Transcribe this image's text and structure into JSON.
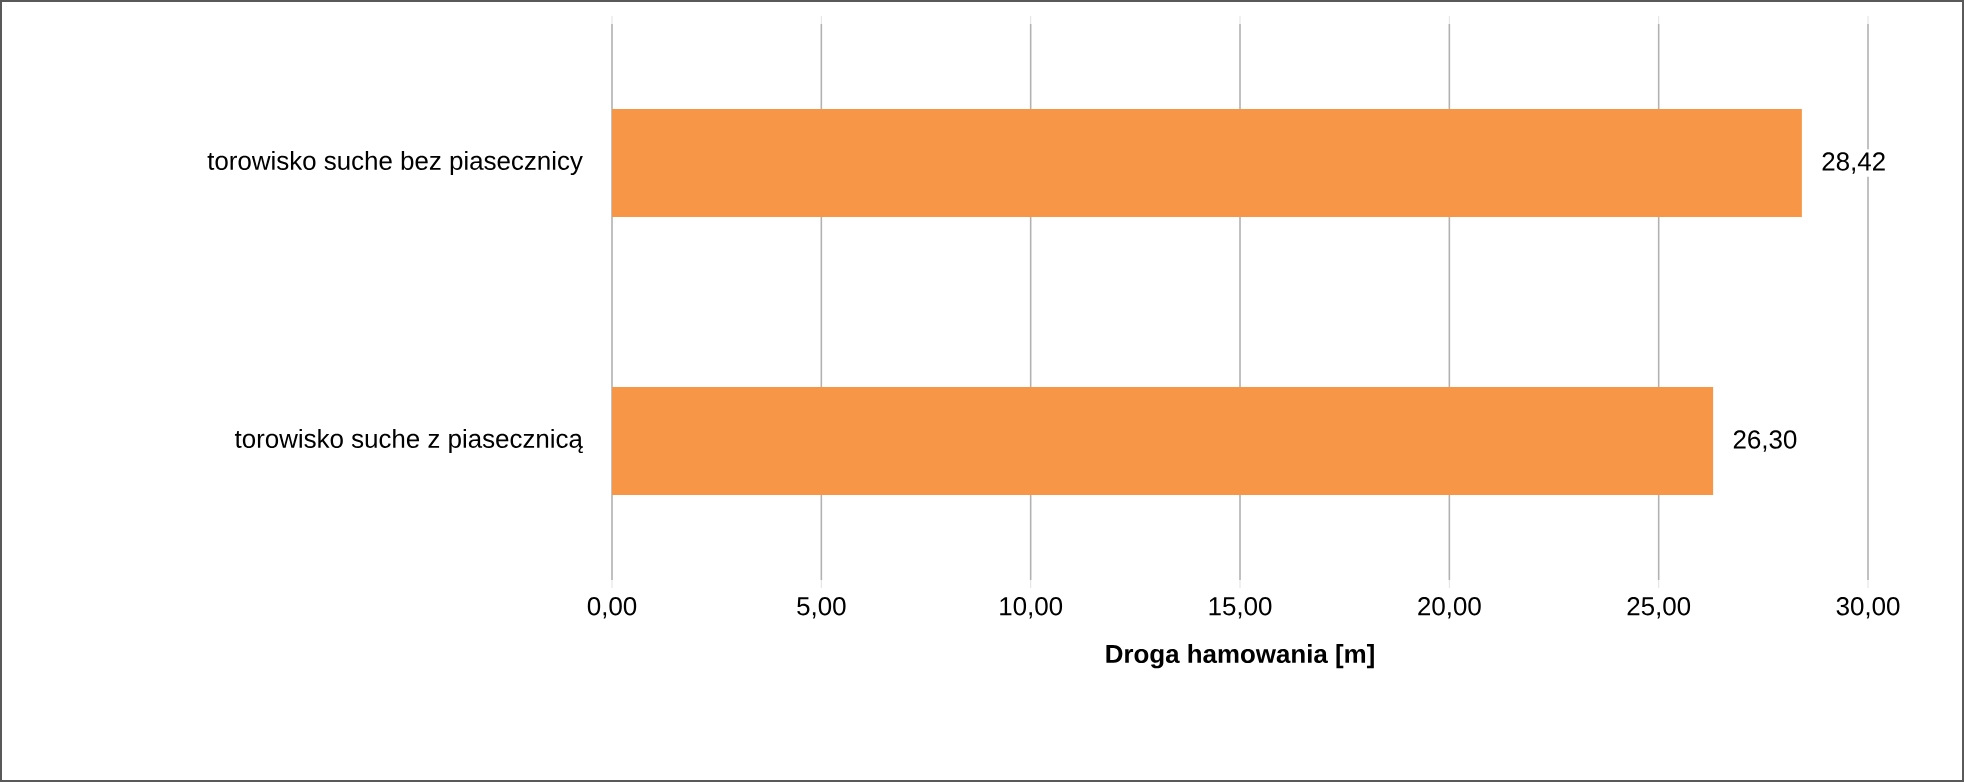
{
  "chart_data": {
    "type": "bar",
    "orientation": "horizontal",
    "categories": [
      "torowisko suche bez piasecznicy",
      "torowisko suche z piasecznicą"
    ],
    "values": [
      28.42,
      26.3
    ],
    "value_labels": [
      "28,42",
      "26,30"
    ],
    "color": "#f79646",
    "xlabel": "Droga hamowania [m]",
    "xlim": [
      0,
      30
    ],
    "xticks": [
      {
        "value": 0,
        "label": "0,00"
      },
      {
        "value": 5,
        "label": "5,00"
      },
      {
        "value": 10,
        "label": "10,00"
      },
      {
        "value": 15,
        "label": "15,00"
      },
      {
        "value": 20,
        "label": "20,00"
      },
      {
        "value": 25,
        "label": "25,00"
      },
      {
        "value": 30,
        "label": "30,00"
      }
    ],
    "grid": "x"
  }
}
